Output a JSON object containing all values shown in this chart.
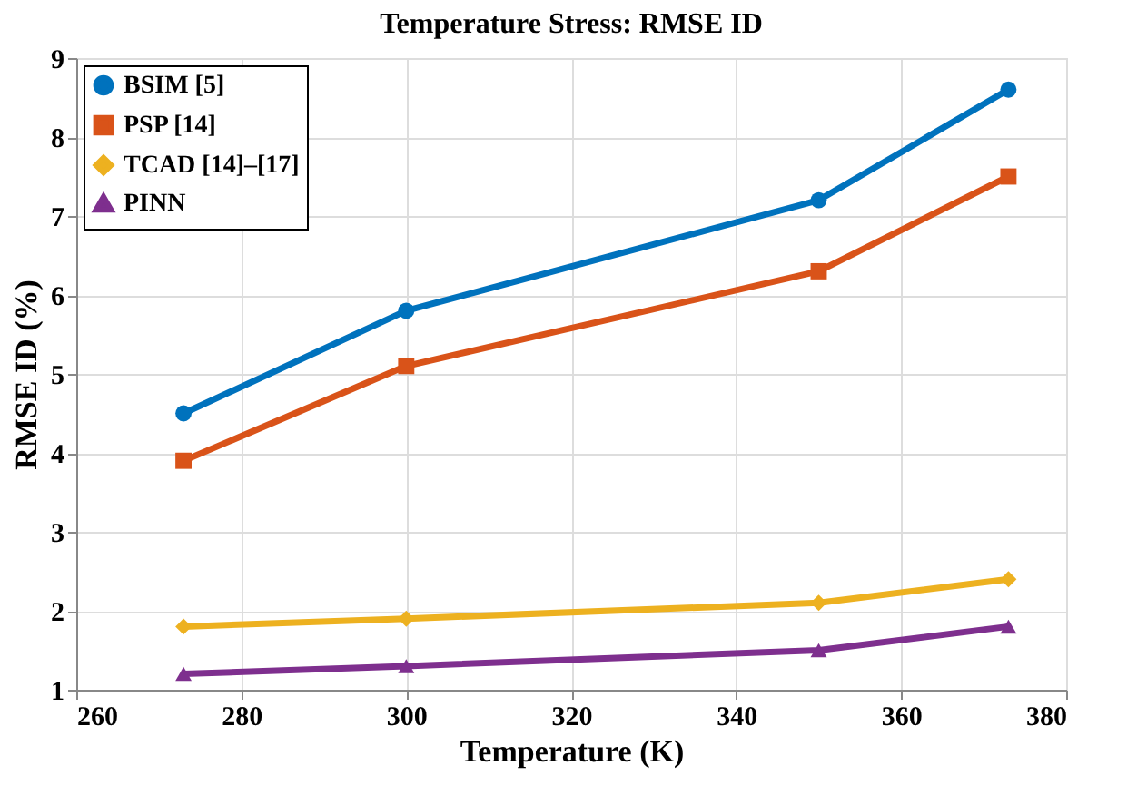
{
  "chart_data": {
    "type": "line",
    "title": "Temperature Stress: RMSE ID",
    "xlabel": "Temperature (K)",
    "ylabel": "RMSE ID (%)",
    "x": [
      273,
      300,
      350,
      373
    ],
    "series": [
      {
        "name": "BSIM [5]",
        "color": "#0072bd",
        "marker": "circle",
        "values": [
          4.5,
          5.8,
          7.2,
          8.6
        ]
      },
      {
        "name": "PSP [14]",
        "color": "#d95319",
        "marker": "square",
        "values": [
          3.9,
          5.1,
          6.3,
          7.5
        ]
      },
      {
        "name": "TCAD [14]–[17]",
        "color": "#edb120",
        "marker": "diamond",
        "values": [
          1.8,
          1.9,
          2.1,
          2.4
        ]
      },
      {
        "name": "PINN",
        "color": "#7e2f8e",
        "marker": "triangle",
        "values": [
          1.2,
          1.3,
          1.5,
          1.8
        ]
      }
    ],
    "xlim": [
      260,
      380
    ],
    "xticks": [
      260,
      280,
      300,
      320,
      340,
      360,
      380
    ],
    "ylim": [
      1,
      9
    ],
    "yticks": [
      1,
      2,
      3,
      4,
      5,
      6,
      7,
      8,
      9
    ],
    "grid": true,
    "legend": "top left",
    "line_style": "solid"
  }
}
